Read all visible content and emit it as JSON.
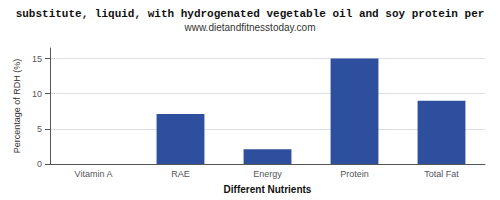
{
  "chart_data": {
    "type": "bar",
    "title": "substitute, liquid, with hydrogenated vegetable oil and soy protein per",
    "subtitle": "www.dietandfitnesstoday.com",
    "categories": [
      "Vitamin A",
      "RAE",
      "Energy",
      "Protein",
      "Total Fat"
    ],
    "values": [
      0,
      7.1,
      2.1,
      15.0,
      9.0
    ],
    "color": "#2e4f9e",
    "xlabel": "Different Nutrients",
    "ylabel": "Percentage of RDH (%)",
    "ylim": [
      0,
      16.5
    ],
    "yticks": [
      0,
      5,
      10,
      15
    ],
    "grid": true
  }
}
